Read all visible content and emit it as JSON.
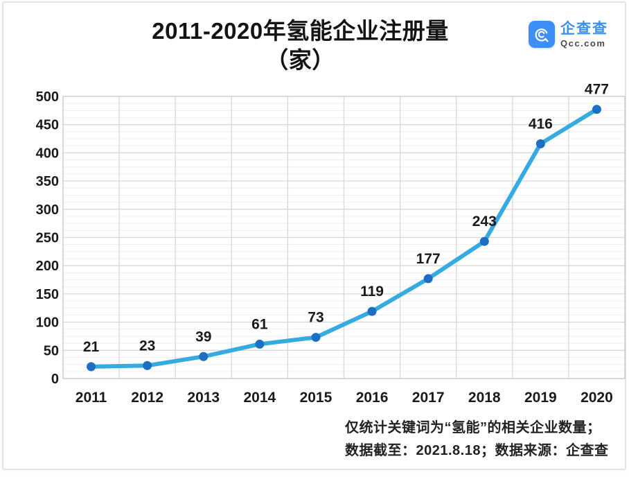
{
  "header": {
    "title_line1": "2011-2020年氢能企业注册量",
    "title_line2": "（家）"
  },
  "logo": {
    "brand": "企查查",
    "site": "Qcc.com",
    "icon": "qcc-magnifier-icon",
    "brand_color": "#3a8ff0"
  },
  "footer": {
    "note_line1": "仅统计关键词为“氢能”的相关企业数量；",
    "note_line2": "数据截至：2021.8.18；数据来源：企查查"
  },
  "chart_data": {
    "type": "line",
    "title": "2011-2020年氢能企业注册量（家）",
    "categories": [
      "2011",
      "2012",
      "2013",
      "2014",
      "2015",
      "2016",
      "2017",
      "2018",
      "2019",
      "2020"
    ],
    "series": [
      {
        "name": "氢能企业注册量",
        "values": [
          21,
          23,
          39,
          61,
          73,
          119,
          177,
          243,
          416,
          477
        ]
      }
    ],
    "ylim": [
      0,
      500
    ],
    "ytick_step": 50,
    "yticks": [
      0,
      50,
      100,
      150,
      200,
      250,
      300,
      350,
      400,
      450,
      500
    ],
    "grid": "major-horizontal + minor-horizontal + vertical-category-boundaries",
    "minor_step": 12.5,
    "legend": "none",
    "data_labels": true,
    "line_color": "#35abe2",
    "marker_color": "#1d6fc4",
    "label_color": "#1a1a1a",
    "axis_label_color": "#1a1a1a",
    "gridline_major_color": "#d8d8d8",
    "gridline_minor_color": "#efefef"
  }
}
